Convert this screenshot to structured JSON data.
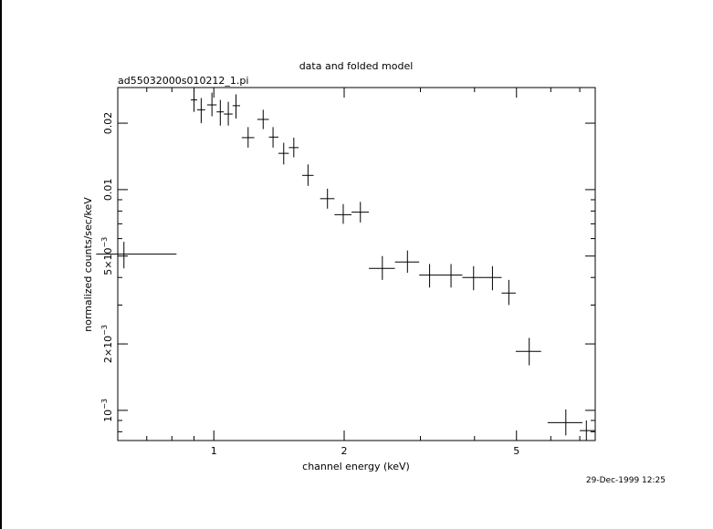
{
  "chart_data": {
    "type": "scatter",
    "title": "data and folded model",
    "subtitle": "ad55032000s010212_1.pi",
    "xlabel": "channel energy (keV)",
    "ylabel": "normalized counts/sec/keV",
    "xscale": "log",
    "yscale": "log",
    "xlim": [
      0.6,
      7.6
    ],
    "ylim": [
      0.00073,
      0.029
    ],
    "x_ticks": [
      {
        "value": 1,
        "label": "1"
      },
      {
        "value": 2,
        "label": "2"
      },
      {
        "value": 5,
        "label": "5"
      }
    ],
    "y_ticks": [
      {
        "value": 0.001,
        "base": "10",
        "exp": "−3"
      },
      {
        "value": 0.002,
        "base": "2×10",
        "exp": "−3"
      },
      {
        "value": 0.005,
        "base": "5×10",
        "exp": "−3"
      },
      {
        "value": 0.01,
        "base": "0.01",
        "exp": ""
      },
      {
        "value": 0.02,
        "base": "0.02",
        "exp": ""
      }
    ],
    "series": [
      {
        "points": [
          {
            "x": 0.62,
            "xlo": 0.535,
            "xhi": 0.82,
            "y": 0.0051,
            "ylo": 0.0044,
            "yhi": 0.0058
          },
          {
            "x": 0.9,
            "xlo": 0.885,
            "xhi": 0.915,
            "y": 0.0255,
            "ylo": 0.0225,
            "yhi": 0.029
          },
          {
            "x": 0.935,
            "xlo": 0.915,
            "xhi": 0.955,
            "y": 0.023,
            "ylo": 0.02,
            "yhi": 0.026
          },
          {
            "x": 0.99,
            "xlo": 0.965,
            "xhi": 1.015,
            "y": 0.0242,
            "ylo": 0.0215,
            "yhi": 0.0275
          },
          {
            "x": 1.035,
            "xlo": 1.015,
            "xhi": 1.055,
            "y": 0.0225,
            "ylo": 0.0195,
            "yhi": 0.0255
          },
          {
            "x": 1.08,
            "xlo": 1.055,
            "xhi": 1.105,
            "y": 0.022,
            "ylo": 0.0195,
            "yhi": 0.025
          },
          {
            "x": 1.125,
            "xlo": 1.105,
            "xhi": 1.15,
            "y": 0.024,
            "ylo": 0.021,
            "yhi": 0.027
          },
          {
            "x": 1.2,
            "xlo": 1.16,
            "xhi": 1.24,
            "y": 0.0172,
            "ylo": 0.0155,
            "yhi": 0.0192
          },
          {
            "x": 1.3,
            "xlo": 1.26,
            "xhi": 1.34,
            "y": 0.0208,
            "ylo": 0.0188,
            "yhi": 0.023
          },
          {
            "x": 1.37,
            "xlo": 1.34,
            "xhi": 1.41,
            "y": 0.0173,
            "ylo": 0.0155,
            "yhi": 0.0192
          },
          {
            "x": 1.45,
            "xlo": 1.41,
            "xhi": 1.49,
            "y": 0.0146,
            "ylo": 0.013,
            "yhi": 0.0163
          },
          {
            "x": 1.53,
            "xlo": 1.49,
            "xhi": 1.57,
            "y": 0.0155,
            "ylo": 0.014,
            "yhi": 0.0172
          },
          {
            "x": 1.65,
            "xlo": 1.6,
            "xhi": 1.7,
            "y": 0.0116,
            "ylo": 0.0104,
            "yhi": 0.013
          },
          {
            "x": 1.83,
            "xlo": 1.76,
            "xhi": 1.9,
            "y": 0.0091,
            "ylo": 0.0082,
            "yhi": 0.0101
          },
          {
            "x": 1.99,
            "xlo": 1.9,
            "xhi": 2.08,
            "y": 0.0077,
            "ylo": 0.007,
            "yhi": 0.0086
          },
          {
            "x": 2.18,
            "xlo": 2.08,
            "xhi": 2.28,
            "y": 0.0079,
            "ylo": 0.0071,
            "yhi": 0.0088
          },
          {
            "x": 2.45,
            "xlo": 2.28,
            "xhi": 2.62,
            "y": 0.0044,
            "ylo": 0.0039,
            "yhi": 0.005
          },
          {
            "x": 2.8,
            "xlo": 2.62,
            "xhi": 2.98,
            "y": 0.0047,
            "ylo": 0.0042,
            "yhi": 0.0053
          },
          {
            "x": 3.15,
            "xlo": 2.98,
            "xhi": 3.32,
            "y": 0.0041,
            "ylo": 0.0036,
            "yhi": 0.0046
          },
          {
            "x": 3.53,
            "xlo": 3.32,
            "xhi": 3.75,
            "y": 0.0041,
            "ylo": 0.0036,
            "yhi": 0.0046
          },
          {
            "x": 3.98,
            "xlo": 3.75,
            "xhi": 4.2,
            "y": 0.004,
            "ylo": 0.0035,
            "yhi": 0.0045
          },
          {
            "x": 4.4,
            "xlo": 4.2,
            "xhi": 4.62,
            "y": 0.004,
            "ylo": 0.0035,
            "yhi": 0.0045
          },
          {
            "x": 4.8,
            "xlo": 4.62,
            "xhi": 4.98,
            "y": 0.0034,
            "ylo": 0.003,
            "yhi": 0.0039
          },
          {
            "x": 5.35,
            "xlo": 4.98,
            "xhi": 5.7,
            "y": 0.00185,
            "ylo": 0.0016,
            "yhi": 0.00213
          },
          {
            "x": 6.5,
            "xlo": 5.9,
            "xhi": 7.1,
            "y": 0.00088,
            "ylo": 0.00077,
            "yhi": 0.00101
          },
          {
            "x": 7.25,
            "xlo": 7.0,
            "xhi": 7.6,
            "y": 0.00081,
            "ylo": 0.00073,
            "yhi": 0.0009
          }
        ]
      }
    ]
  },
  "footer": {
    "timestamp": "29-Dec-1999 12:25"
  }
}
